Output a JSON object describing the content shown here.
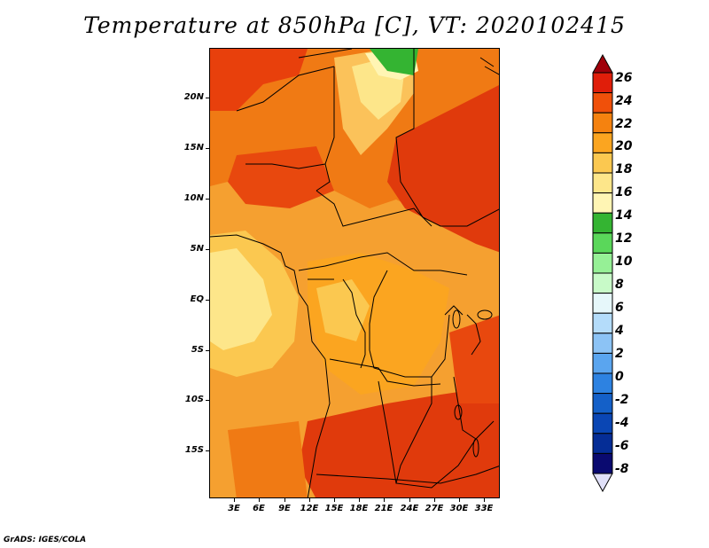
{
  "title": "Temperature at 850hPa [C], VT: 2020102415",
  "credit": "GrADS: IGES/COLA",
  "lat_labels": [
    "20N",
    "15N",
    "10N",
    "5N",
    "EQ",
    "5S",
    "10S",
    "15S"
  ],
  "lon_labels": [
    "3E",
    "6E",
    "9E",
    "12E",
    "15E",
    "18E",
    "21E",
    "24E",
    "27E",
    "30E",
    "33E"
  ],
  "colorbar": {
    "labels": [
      "26",
      "24",
      "22",
      "20",
      "18",
      "16",
      "14",
      "12",
      "10",
      "8",
      "6",
      "4",
      "2",
      "0",
      "-2",
      "-4",
      "-6",
      "-8"
    ],
    "colors": [
      "#a0000a",
      "#e01e0a",
      "#f0500a",
      "#f5820f",
      "#fba520",
      "#fbc850",
      "#fde68a",
      "#fff5b4",
      "#34b432",
      "#5ad75a",
      "#96f096",
      "#c8fac8",
      "#e6f7fa",
      "#b4dcfa",
      "#8cc3f5",
      "#5aa5ef",
      "#2d82e1",
      "#1460c8",
      "#0a46b4",
      "#052d96",
      "#0a0a70",
      "#e0e0f8"
    ]
  },
  "chart_data": {
    "type": "heatmap",
    "title": "Temperature at 850hPa [C], VT: 2020102415",
    "variable": "Temperature at 850hPa",
    "units": "C",
    "valid_time": "2020102415",
    "lon_range": [
      0,
      35
    ],
    "lat_range": [
      -20,
      25
    ],
    "lon_ticks": [
      "3E",
      "6E",
      "9E",
      "12E",
      "15E",
      "18E",
      "21E",
      "24E",
      "27E",
      "30E",
      "33E"
    ],
    "lat_ticks": [
      "20N",
      "15N",
      "10N",
      "5N",
      "EQ",
      "5S",
      "10S",
      "15S"
    ],
    "contour_levels": [
      -8,
      -6,
      -4,
      -2,
      0,
      2,
      4,
      6,
      8,
      10,
      12,
      14,
      16,
      18,
      20,
      22,
      24,
      26
    ],
    "colorbar_position": "right"
  }
}
